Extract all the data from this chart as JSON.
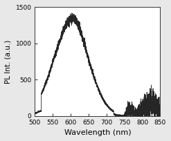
{
  "xlim": [
    500,
    850
  ],
  "ylim": [
    0,
    1500
  ],
  "xticks": [
    500,
    550,
    600,
    650,
    700,
    750,
    800,
    850
  ],
  "yticks": [
    0,
    500,
    1000,
    1500
  ],
  "xlabel": "Wavelength (nm)",
  "ylabel": "PL Int. (a.u.)",
  "line_color": "#1a1a1a",
  "background_color": "#ffffff",
  "figure_color": "#e8e8e8",
  "xlabel_fontsize": 8,
  "ylabel_fontsize": 7.5,
  "tick_fontsize": 6.5,
  "seed": 7
}
